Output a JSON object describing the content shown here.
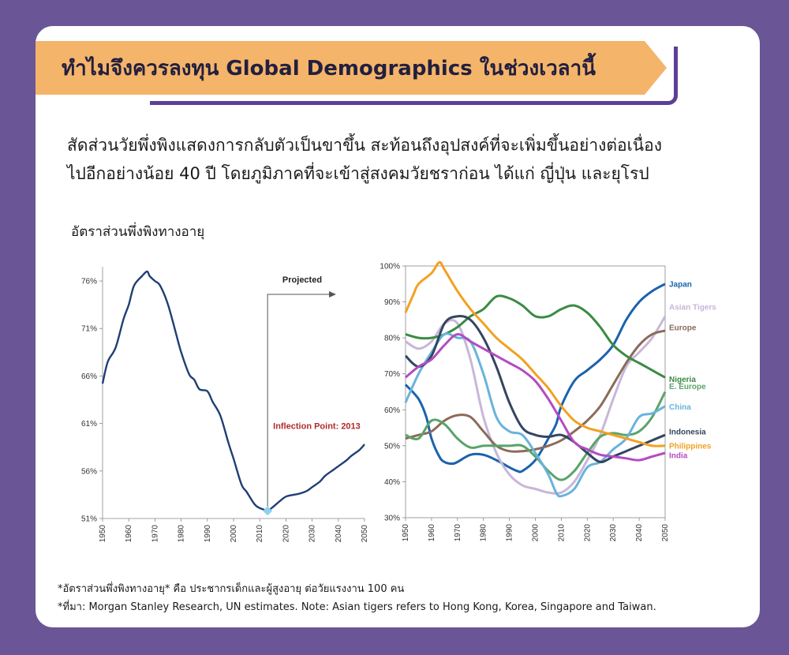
{
  "header": {
    "title": "ทำไมจึงควรลงทุน Global Demographics ในช่วงเวลานี้"
  },
  "intro": {
    "line1": "สัดส่วนวัยพึ่งพิงแสดงการกลับตัวเป็นขาขึ้น สะท้อนถึงอุปสงค์ที่จะเพิ่มขึ้นอย่างต่อเนื่อง",
    "line2": "ไปอีกอย่างน้อย 40 ปี โดยภูมิภาคที่จะเข้าสู่สงคมวัยชราก่อน ได้แก่ ญี่ปุ่น และยุโรป"
  },
  "chart_heading": "อัตราส่วนพึ่งพิงทางอายุ",
  "footnotes": {
    "note1": "*อัตราส่วนพึ่งพิงทางอายุ* คือ ประชากรเด็กและผู้สูงอายุ ต่อวัยแรงงาน 100 คน",
    "note2": "*ที่มา: Morgan Stanley Research, UN estimates. Note: Asian tigers refers to Hong Kong, Korea, Singapore and Taiwan."
  },
  "chart_data": [
    {
      "type": "line",
      "x_ticks": [
        1950,
        1960,
        1970,
        1980,
        1990,
        2000,
        2010,
        2020,
        2030,
        2040,
        2050
      ],
      "y_ticks": [
        "51%",
        "56%",
        "61%",
        "66%",
        "71%",
        "76%"
      ],
      "ylim": [
        51,
        77.5
      ],
      "xlim": [
        1950,
        2050
      ],
      "annotations": {
        "projected": "Projected",
        "inflection": "Inflection Point: 2013"
      },
      "inflection_year": 2013,
      "projected_start": 2013,
      "color": "#1f3f73",
      "series": [
        {
          "x": [
            1950,
            1952,
            1955,
            1958,
            1960,
            1962,
            1965,
            1967,
            1968,
            1970,
            1972,
            1975,
            1978,
            1980,
            1983,
            1985,
            1987,
            1990,
            1992,
            1995,
            1998,
            2000,
            2003,
            2005,
            2008,
            2010,
            2012,
            2013,
            2015,
            2018,
            2020,
            2023,
            2025,
            2028,
            2030,
            2033,
            2035,
            2038,
            2040,
            2043,
            2045,
            2048,
            2050
          ],
          "y": [
            65.2,
            67.5,
            69.0,
            72.0,
            73.5,
            75.5,
            76.5,
            77.0,
            76.5,
            76.0,
            75.5,
            73.5,
            70.5,
            68.5,
            66.2,
            65.6,
            64.6,
            64.4,
            63.3,
            61.8,
            59.0,
            57.3,
            54.6,
            53.8,
            52.5,
            52.1,
            51.9,
            51.8,
            52.2,
            52.9,
            53.3,
            53.5,
            53.6,
            53.9,
            54.3,
            54.9,
            55.5,
            56.1,
            56.5,
            57.1,
            57.6,
            58.2,
            58.8
          ]
        }
      ]
    },
    {
      "type": "line",
      "x_ticks": [
        1950,
        1960,
        1970,
        1980,
        1990,
        2000,
        2010,
        2020,
        2030,
        2040,
        2050
      ],
      "y_ticks": [
        "30%",
        "40%",
        "50%",
        "60%",
        "70%",
        "80%",
        "90%",
        "100%"
      ],
      "ylim": [
        30,
        100
      ],
      "xlim": [
        1950,
        2050
      ],
      "series": [
        {
          "name": "Japan",
          "color": "#1b62ad",
          "x": [
            1950,
            1955,
            1958,
            1960,
            1963,
            1965,
            1968,
            1970,
            1975,
            1980,
            1985,
            1990,
            1993,
            1995,
            2000,
            2005,
            2008,
            2010,
            2015,
            2020,
            2025,
            2030,
            2035,
            2040,
            2045,
            2050
          ],
          "y": [
            67,
            63,
            58,
            52,
            47,
            45.5,
            45,
            45.5,
            47.5,
            47.5,
            46,
            44,
            43,
            43,
            46,
            52,
            56,
            61,
            68,
            71,
            74,
            78,
            85,
            90,
            93,
            95
          ]
        },
        {
          "name": "Asian Tigers",
          "color": "#c8b6da",
          "x": [
            1950,
            1955,
            1960,
            1965,
            1970,
            1975,
            1980,
            1985,
            1990,
            1995,
            2000,
            2005,
            2010,
            2015,
            2020,
            2025,
            2030,
            2035,
            2040,
            2045,
            2050
          ],
          "y": [
            79,
            77,
            79,
            84,
            84,
            74,
            58,
            48,
            42,
            39,
            38,
            37,
            37,
            40,
            46,
            53,
            63,
            72,
            76,
            80,
            86
          ]
        },
        {
          "name": "Europe",
          "color": "#8b6b58",
          "x": [
            1950,
            1955,
            1960,
            1965,
            1970,
            1975,
            1980,
            1985,
            1990,
            1995,
            2000,
            2005,
            2010,
            2015,
            2020,
            2025,
            2030,
            2035,
            2040,
            2045,
            2050
          ],
          "y": [
            52,
            53,
            54,
            57,
            58.5,
            58,
            54,
            50,
            48.5,
            48.5,
            49,
            50,
            51.5,
            54,
            57,
            61,
            67,
            73,
            78,
            81,
            82
          ]
        },
        {
          "name": "Nigeria",
          "color": "#3a8b43",
          "x": [
            1950,
            1955,
            1960,
            1965,
            1970,
            1975,
            1980,
            1985,
            1990,
            1995,
            2000,
            2005,
            2010,
            2015,
            2020,
            2025,
            2030,
            2035,
            2040,
            2045,
            2050
          ],
          "y": [
            81,
            80,
            80,
            81,
            83,
            86,
            88,
            91.5,
            91,
            89,
            86,
            86,
            88,
            89,
            87,
            83,
            78,
            75,
            73,
            71,
            69
          ]
        },
        {
          "name": "E. Europe",
          "color": "#5aa469",
          "x": [
            1950,
            1955,
            1960,
            1965,
            1970,
            1975,
            1980,
            1985,
            1990,
            1995,
            2000,
            2005,
            2010,
            2015,
            2020,
            2025,
            2030,
            2035,
            2040,
            2045,
            2050
          ],
          "y": [
            53,
            52,
            57,
            56,
            52,
            49.5,
            50,
            50,
            50,
            50,
            47,
            43,
            40.5,
            43,
            48,
            52.5,
            53.5,
            53,
            54,
            58,
            65
          ]
        },
        {
          "name": "China",
          "color": "#69b3dc",
          "x": [
            1950,
            1955,
            1960,
            1965,
            1970,
            1975,
            1980,
            1985,
            1990,
            1995,
            2000,
            2005,
            2008,
            2010,
            2015,
            2020,
            2025,
            2030,
            2035,
            2040,
            2045,
            2050
          ],
          "y": [
            62,
            70,
            76,
            81,
            80,
            79,
            70,
            58,
            54,
            53,
            48,
            42,
            37,
            36,
            38,
            44,
            45.5,
            49,
            52,
            58,
            59,
            61
          ]
        },
        {
          "name": "Indonesia",
          "color": "#34455f",
          "x": [
            1950,
            1955,
            1960,
            1965,
            1970,
            1975,
            1980,
            1985,
            1990,
            1995,
            2000,
            2005,
            2010,
            2015,
            2020,
            2025,
            2030,
            2035,
            2040,
            2045,
            2050
          ],
          "y": [
            75,
            72,
            75,
            84,
            86,
            85,
            80,
            72,
            62,
            55,
            53,
            52.5,
            53,
            51,
            48,
            45.5,
            47,
            48.5,
            50,
            51.5,
            53
          ]
        },
        {
          "name": "Philippines",
          "color": "#f2a122",
          "x": [
            1950,
            1953,
            1955,
            1960,
            1963,
            1965,
            1970,
            1975,
            1980,
            1985,
            1990,
            1995,
            2000,
            2005,
            2010,
            2015,
            2020,
            2025,
            2030,
            2035,
            2040,
            2045,
            2050
          ],
          "y": [
            87,
            92,
            95,
            98,
            101,
            99,
            93,
            88,
            84,
            80,
            77,
            74,
            70,
            66,
            61,
            57,
            55,
            54,
            53,
            52,
            51,
            50,
            50
          ]
        },
        {
          "name": "India",
          "color": "#b34cc2",
          "x": [
            1950,
            1955,
            1960,
            1965,
            1970,
            1975,
            1980,
            1985,
            1990,
            1995,
            2000,
            2005,
            2010,
            2015,
            2020,
            2025,
            2030,
            2035,
            2040,
            2045,
            2050
          ],
          "y": [
            69,
            72,
            74,
            78,
            81,
            79,
            77,
            75,
            73,
            71,
            68,
            63,
            57,
            51,
            49,
            47.5,
            47,
            46.5,
            46,
            47,
            48
          ]
        }
      ]
    }
  ]
}
